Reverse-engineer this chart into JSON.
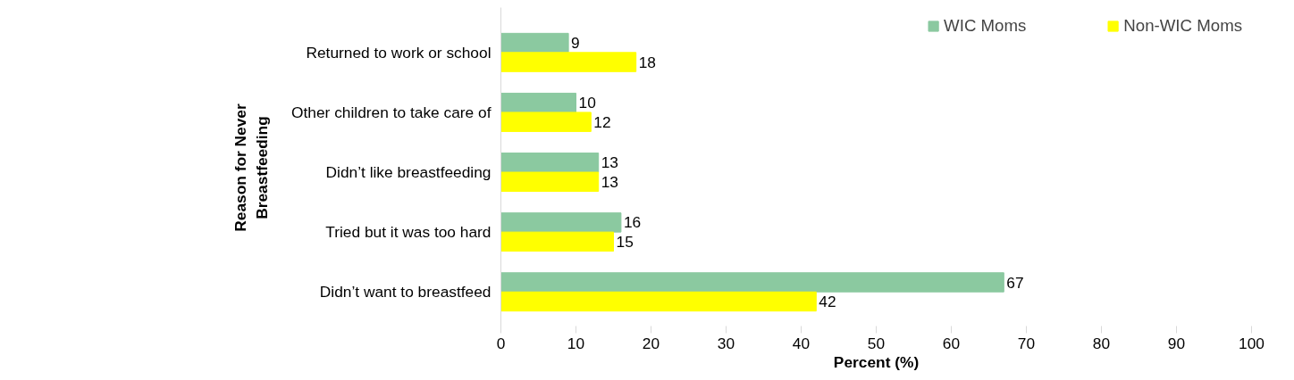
{
  "chart_data": {
    "type": "bar",
    "orientation": "horizontal",
    "xlabel": "Percent (%)",
    "ylabel": "Reason for Never Breastfeeding",
    "categories": [
      "Returned to work or school",
      "Other children to take care of",
      "Didn’t like breastfeeding",
      "Tried but it was too hard",
      "Didn’t want to breastfeed"
    ],
    "series": [
      {
        "name": "WIC Moms",
        "color": "#8bc9a0",
        "values": [
          9,
          10,
          13,
          16,
          67
        ]
      },
      {
        "name": "Non-WIC Moms",
        "color": "#ffff00",
        "values": [
          18,
          12,
          13,
          15,
          42
        ]
      }
    ],
    "xlim": [
      0,
      100
    ],
    "xticks": [
      0,
      10,
      20,
      30,
      40,
      50,
      60,
      70,
      80,
      90,
      100
    ],
    "data_labels": true,
    "legend": "top right",
    "grid": false
  }
}
